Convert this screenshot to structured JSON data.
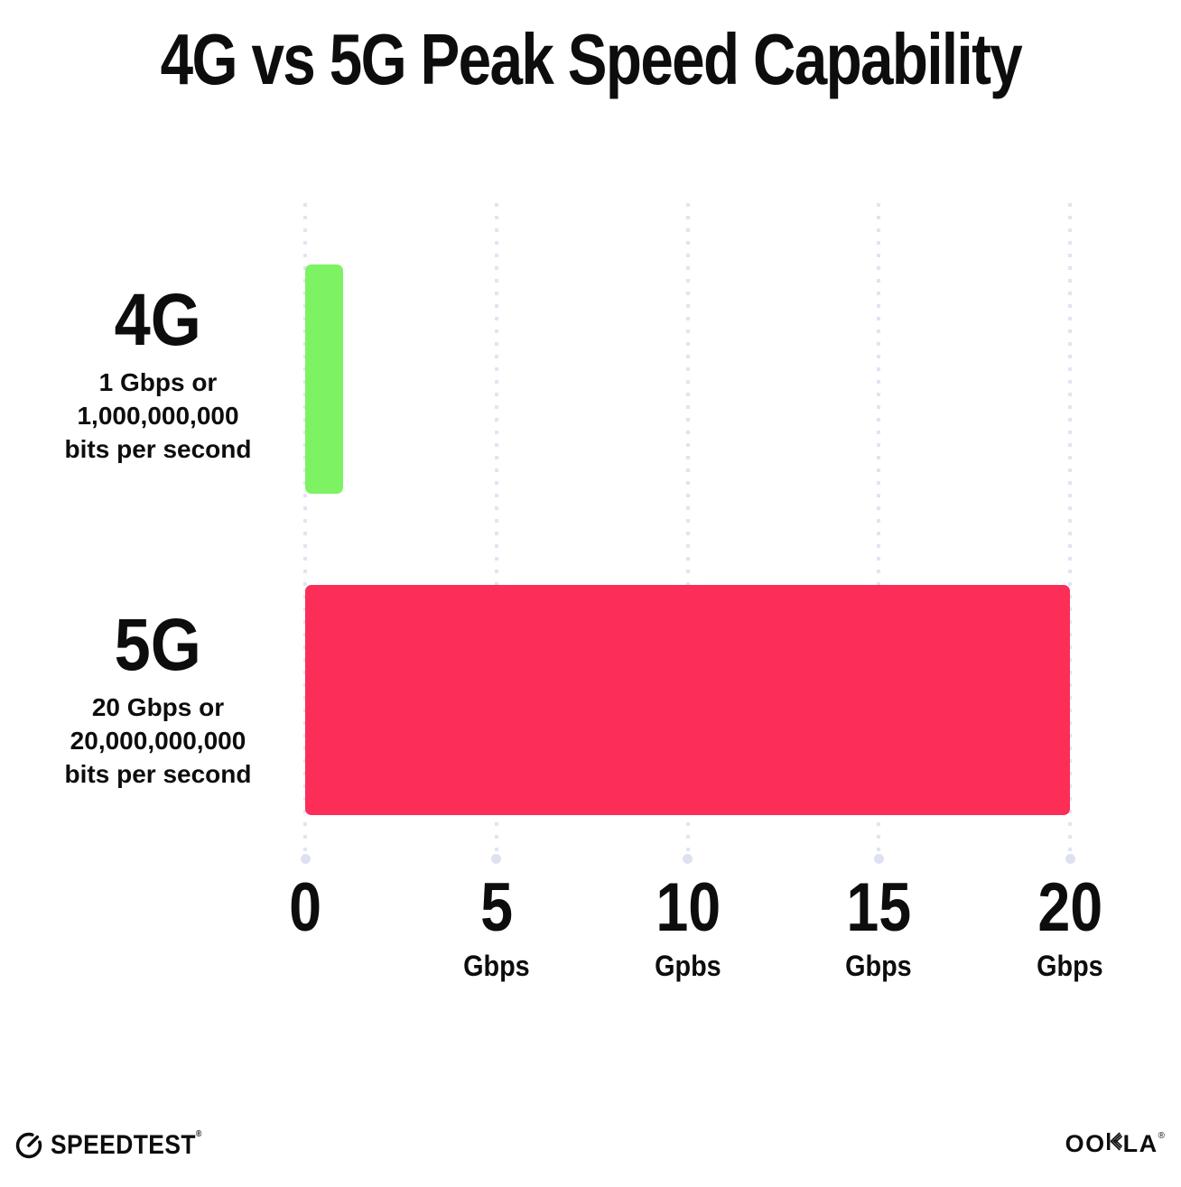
{
  "title": "4G vs 5G Peak Speed Capability",
  "chart_data": {
    "type": "bar",
    "orientation": "horizontal",
    "title": "4G vs 5G Peak Speed Capability",
    "categories": [
      "4G",
      "5G"
    ],
    "values": [
      1,
      20
    ],
    "value_unit": "Gbps",
    "xlim": [
      0,
      20
    ],
    "x_ticks": [
      0,
      5,
      10,
      15,
      20
    ],
    "bar_colors": [
      "#7df363",
      "#fc2d57"
    ],
    "grid": "vertical-dotted",
    "legend": "none",
    "annotations": [
      "4G: 1 Gbps or 1,000,000,000 bits per second",
      "5G: 20 Gbps or 20,000,000,000 bits per second"
    ]
  },
  "rows": [
    {
      "name": "4G",
      "sub": [
        "1 Gbps or",
        "1,000,000,000",
        "bits per second"
      ]
    },
    {
      "name": "5G",
      "sub": [
        "20 Gbps or",
        "20,000,000,000",
        "bits per second"
      ]
    }
  ],
  "x_axis": {
    "ticks": [
      {
        "value": "0",
        "unit": ""
      },
      {
        "value": "5",
        "unit": "Gbps"
      },
      {
        "value": "10",
        "unit": "Gpbs"
      },
      {
        "value": "15",
        "unit": "Gbps"
      },
      {
        "value": "20",
        "unit": "Gbps"
      }
    ]
  },
  "footer": {
    "speedtest_label": "SPEEDTEST",
    "speedtest_reg": "®",
    "ookla_part1": "OO",
    "ookla_part2": "LA",
    "ookla_full": "OOKLA",
    "ookla_reg": "®"
  },
  "colors": {
    "bar_4g": "#7df363",
    "bar_5g": "#fc2d57",
    "grid_dot": "#e2e4f2",
    "text": "#0d0d0d",
    "background": "#ffffff"
  }
}
